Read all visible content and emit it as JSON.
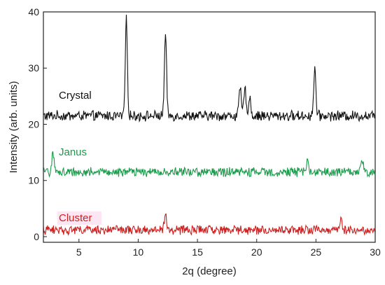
{
  "chart_data": {
    "type": "line",
    "xlabel": "2q (degree)",
    "ylabel": "Intensity (arb. units)",
    "xlim": [
      2,
      30
    ],
    "ylim": [
      -1,
      40
    ],
    "x_ticks": [
      5,
      10,
      15,
      20,
      25,
      30
    ],
    "y_ticks": [
      0,
      10,
      20,
      30,
      40
    ],
    "grid": false,
    "series": [
      {
        "name": "Crystal",
        "color": "#111111",
        "baseline": 21.5,
        "noise": 0.8,
        "peaks": [
          {
            "x": 9.0,
            "y": 38.5
          },
          {
            "x": 12.3,
            "y": 36.0
          },
          {
            "x": 18.6,
            "y": 26.5
          },
          {
            "x": 19.0,
            "y": 26.5
          },
          {
            "x": 19.4,
            "y": 25.0
          },
          {
            "x": 24.9,
            "y": 30.0
          }
        ]
      },
      {
        "name": "Janus",
        "color": "#1a9a4a",
        "baseline": 11.5,
        "noise": 0.7,
        "peaks": [
          {
            "x": 2.8,
            "y": 15.0
          },
          {
            "x": 24.3,
            "y": 14.0
          },
          {
            "x": 28.9,
            "y": 13.5
          }
        ]
      },
      {
        "name": "Cluster",
        "color": "#cc1f1f",
        "baseline": 1.2,
        "noise": 0.7,
        "peaks": [
          {
            "x": 12.3,
            "y": 3.8
          },
          {
            "x": 27.1,
            "y": 3.6
          }
        ]
      }
    ]
  }
}
